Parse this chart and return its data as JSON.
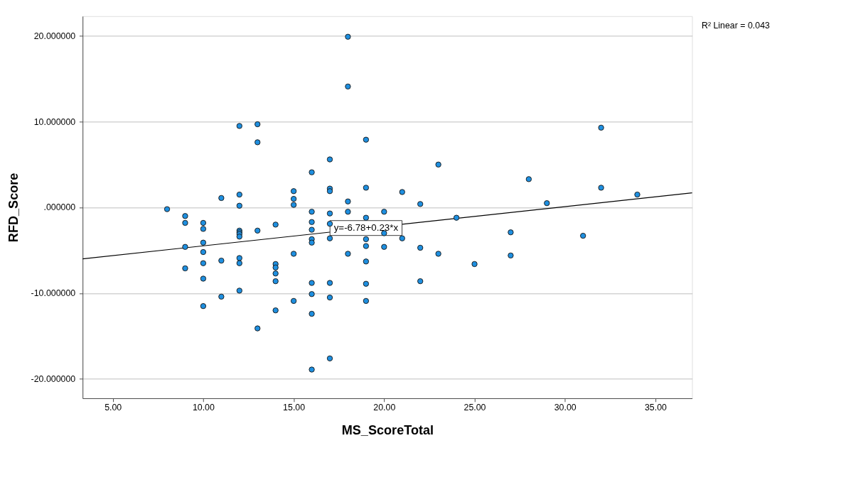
{
  "chart_data": {
    "type": "scatter",
    "xlabel": "MS_ScoreTotal",
    "ylabel": "RFD_Score",
    "xlim": [
      3.33,
      37.03
    ],
    "ylim": [
      -22.25,
      22.3
    ],
    "xticks": [
      {
        "value": 5,
        "label": "5.00"
      },
      {
        "value": 10,
        "label": "10.00"
      },
      {
        "value": 15,
        "label": "15.00"
      },
      {
        "value": 20,
        "label": "20.00"
      },
      {
        "value": 25,
        "label": "25.00"
      },
      {
        "value": 30,
        "label": "30.00"
      },
      {
        "value": 35,
        "label": "35.00"
      }
    ],
    "yticks": [
      {
        "value": -20,
        "label": "-20.000000"
      },
      {
        "value": -10,
        "label": "-10.000000"
      },
      {
        "value": 0,
        "label": ".000000"
      },
      {
        "value": 10,
        "label": "10.000000"
      },
      {
        "value": 20,
        "label": "20.000000"
      }
    ],
    "grid": "y",
    "marker": "circle",
    "annotations": [
      {
        "text": "y=-6.78+0.23*x",
        "x": 19,
        "y": -2.4
      },
      "R² Linear = 0.043"
    ],
    "series": [
      {
        "color": "#1e8fe0",
        "x": [
          8,
          9,
          9,
          9,
          9,
          10,
          10,
          10,
          10,
          10,
          10,
          10,
          11,
          11,
          11,
          12,
          12,
          12,
          12,
          12,
          12,
          12,
          12,
          12,
          12,
          13,
          13,
          13,
          13,
          14,
          14,
          14,
          14,
          14,
          14,
          15,
          15,
          15,
          15,
          15,
          16,
          16,
          16,
          16,
          16,
          16,
          16,
          16,
          16,
          16,
          17,
          17,
          17,
          17,
          17,
          17,
          17,
          17,
          17,
          18,
          18,
          18,
          18,
          18,
          19,
          19,
          19,
          19,
          19,
          19,
          19,
          19,
          20,
          20,
          20,
          21,
          21,
          22,
          22,
          22,
          23,
          23,
          24,
          25,
          27,
          27,
          28,
          29,
          31,
          32,
          32,
          34
        ],
        "values": [
          -0.2,
          -1.0,
          -1.8,
          -4.6,
          -7.1,
          -1.8,
          -2.5,
          -4.1,
          -5.2,
          -6.5,
          -8.3,
          -11.5,
          1.1,
          -6.2,
          -10.4,
          9.5,
          1.5,
          0.2,
          -2.7,
          -2.9,
          -3.1,
          -3.4,
          -5.9,
          -6.5,
          -9.7,
          9.7,
          7.6,
          -2.7,
          -14.1,
          -2.0,
          -6.6,
          -7.0,
          -7.7,
          -8.6,
          -12.0,
          1.9,
          1.0,
          0.3,
          -5.4,
          -10.9,
          4.1,
          -0.5,
          -1.7,
          -2.6,
          -3.7,
          -4.1,
          -8.8,
          -10.1,
          -12.4,
          -18.9,
          5.6,
          2.2,
          1.9,
          -0.7,
          -1.9,
          -3.6,
          -8.8,
          -10.5,
          -17.6,
          19.9,
          14.1,
          0.7,
          -0.5,
          -5.4,
          7.9,
          2.3,
          -1.2,
          -3.7,
          -4.5,
          -6.3,
          -8.9,
          -10.9,
          -0.5,
          -3.0,
          -4.6,
          1.8,
          -3.6,
          0.4,
          -4.7,
          -8.6,
          5.0,
          -5.4,
          -1.2,
          -6.6,
          -2.9,
          -5.6,
          3.3,
          0.5,
          -3.3,
          9.3,
          2.3,
          1.5
        ]
      },
      {
        "type": "line",
        "marker": "none",
        "line_style": "solid",
        "color": "#000000",
        "x": [
          3.33,
          37.03
        ],
        "values": [
          -6.0,
          1.7
        ]
      }
    ]
  }
}
